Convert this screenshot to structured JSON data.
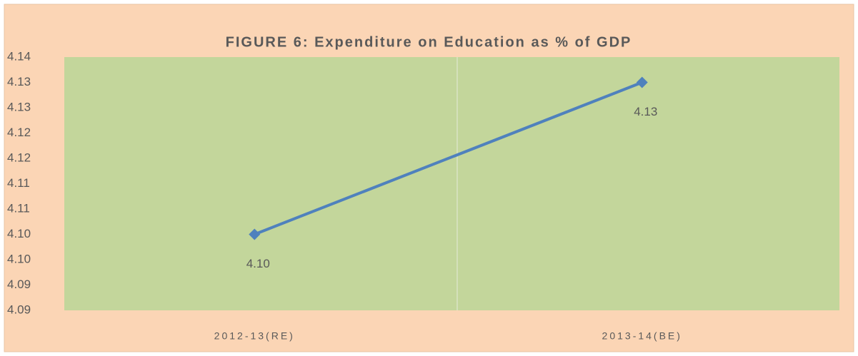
{
  "chart_data": {
    "type": "line",
    "title": "FIGURE 6: Expenditure on Education as % of GDP",
    "categories": [
      "2012-13(RE)",
      "2013-14(BE)"
    ],
    "values": [
      4.105,
      4.135
    ],
    "value_labels": [
      "4.10",
      "4.13"
    ],
    "color": "#4f81bd",
    "ylim": [
      4.09,
      4.14
    ],
    "yticks": [
      4.09,
      {
        "value": 4.095,
        "label": "4.09"
      },
      {
        "value": 4.1,
        "label": "4.10"
      },
      {
        "value": 4.105,
        "label": "4.10"
      },
      4.11,
      {
        "value": 4.115,
        "label": "4.11"
      },
      4.12,
      {
        "value": 4.125,
        "label": "4.12"
      },
      4.13,
      {
        "value": 4.135,
        "label": "4.13"
      },
      4.14
    ],
    "grid": false
  }
}
